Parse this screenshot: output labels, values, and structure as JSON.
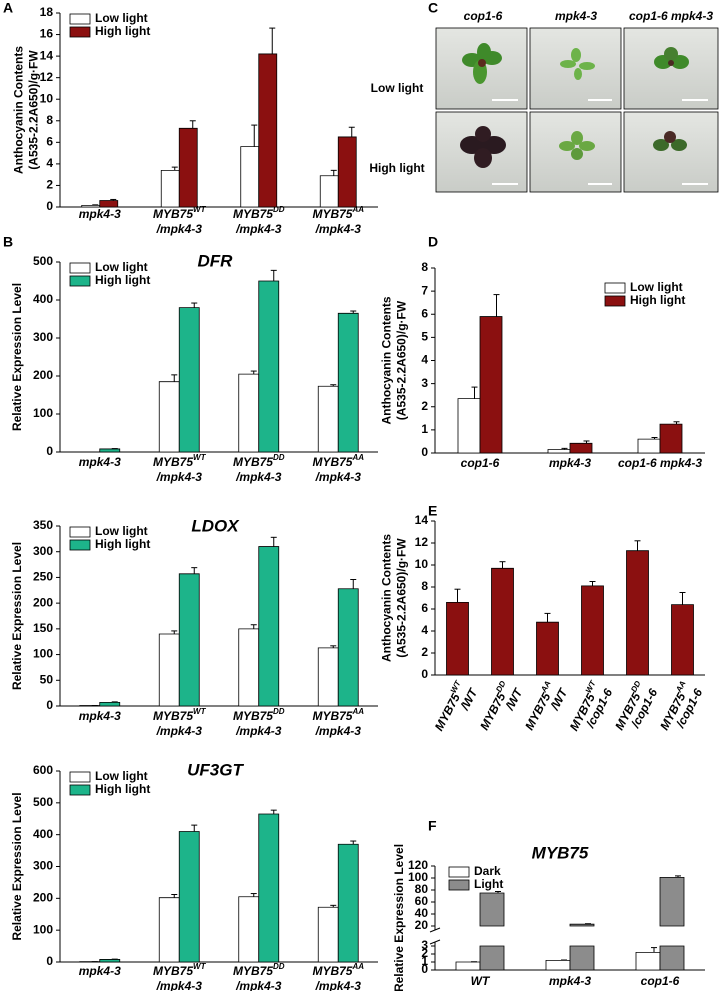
{
  "chart_data": [
    {
      "type": "bar",
      "panel": "A",
      "ylabel": [
        "Anthocyanin Contents",
        "(A535-2.2A650)/g·FW"
      ],
      "categories": [
        "mpk4-3",
        "MYB75WT/mpk4-3",
        "MYB75DD/mpk4-3",
        "MYB75AA/mpk4-3"
      ],
      "series": [
        {
          "name": "Low light",
          "color": "#ffffff",
          "values": [
            0.15,
            3.4,
            5.6,
            2.9
          ],
          "errors": [
            0.05,
            0.3,
            2.0,
            0.5
          ]
        },
        {
          "name": "High light",
          "color": "#8b1010",
          "values": [
            0.6,
            7.3,
            14.2,
            6.5
          ],
          "errors": [
            0.1,
            0.7,
            2.4,
            0.9
          ]
        }
      ],
      "ylim": [
        0,
        18
      ],
      "yticks": [
        0,
        2,
        4,
        6,
        8,
        10,
        12,
        14,
        16,
        18
      ],
      "legend": "upper left"
    },
    {
      "type": "bar",
      "panel": "B",
      "title": "DFR",
      "ylabel": [
        "Relative Expression Level"
      ],
      "categories": [
        "mpk4-3",
        "MYB75WT/mpk4-3",
        "MYB75DD/mpk4-3",
        "MYB75AA/mpk4-3"
      ],
      "series": [
        {
          "name": "Low light",
          "color": "#ffffff",
          "values": [
            0,
            185,
            205,
            173
          ],
          "errors": [
            0,
            18,
            8,
            4
          ]
        },
        {
          "name": "High light",
          "color": "#1db48a",
          "values": [
            8,
            380,
            450,
            365
          ],
          "errors": [
            1,
            12,
            28,
            6
          ]
        }
      ],
      "ylim": [
        0,
        500
      ],
      "yticks": [
        0,
        100,
        200,
        300,
        400,
        500
      ],
      "legend": "upper left"
    },
    {
      "type": "bar",
      "title": "LDOX",
      "ylabel": [
        "Relative Expression Level"
      ],
      "categories": [
        "mpk4-3",
        "MYB75WT/mpk4-3",
        "MYB75DD/mpk4-3",
        "MYB75AA/mpk4-3"
      ],
      "series": [
        {
          "name": "Low light",
          "color": "#ffffff",
          "values": [
            1,
            140,
            150,
            113
          ],
          "errors": [
            0,
            6,
            8,
            4
          ]
        },
        {
          "name": "High light",
          "color": "#1db48a",
          "values": [
            7,
            257,
            310,
            228
          ],
          "errors": [
            1,
            12,
            18,
            18
          ]
        }
      ],
      "ylim": [
        0,
        350
      ],
      "yticks": [
        0,
        50,
        100,
        150,
        200,
        250,
        300,
        350
      ],
      "legend": "upper left"
    },
    {
      "type": "bar",
      "title": "UF3GT",
      "ylabel": [
        "Relative Expression Level"
      ],
      "categories": [
        "mpk4-3",
        "MYB75WT/mpk4-3",
        "MYB75DD/mpk4-3",
        "MYB75AA/mpk4-3"
      ],
      "series": [
        {
          "name": "Low light",
          "color": "#ffffff",
          "values": [
            1,
            202,
            205,
            172
          ],
          "errors": [
            0,
            10,
            10,
            6
          ]
        },
        {
          "name": "High light",
          "color": "#1db48a",
          "values": [
            8,
            410,
            465,
            370
          ],
          "errors": [
            1,
            20,
            12,
            10
          ]
        }
      ],
      "ylim": [
        0,
        600
      ],
      "yticks": [
        0,
        100,
        200,
        300,
        400,
        500,
        600
      ],
      "legend": "upper left"
    },
    {
      "type": "bar",
      "panel": "D",
      "ylabel": [
        "Anthocyanin Contents",
        "(A535-2.2A650)/g·FW"
      ],
      "categories": [
        "cop1-6",
        "mpk4-3",
        "cop1-6 mpk4-3"
      ],
      "series": [
        {
          "name": "Low light",
          "color": "#ffffff",
          "values": [
            2.35,
            0.15,
            0.6
          ],
          "errors": [
            0.5,
            0.05,
            0.07
          ]
        },
        {
          "name": "High light",
          "color": "#8b1010",
          "values": [
            5.9,
            0.42,
            1.25
          ],
          "errors": [
            0.95,
            0.1,
            0.1
          ]
        }
      ],
      "ylim": [
        0,
        8
      ],
      "yticks": [
        0,
        1,
        2,
        3,
        4,
        5,
        6,
        7,
        8
      ],
      "legend": "upper right"
    },
    {
      "type": "bar",
      "panel": "E",
      "ylabel": [
        "Anthocyanin Contents",
        "(A535-2.2A650)/g·FW"
      ],
      "categories": [
        "MYB75WT/WT",
        "MYB75DD/WT",
        "MYB75AA/WT",
        "MYB75WT/cop1-6",
        "MYB75DD/cop1-6",
        "MYB75AA/cop1-6"
      ],
      "series": [
        {
          "color": "#8b1010",
          "values": [
            6.6,
            9.7,
            4.8,
            8.1,
            11.3,
            6.4
          ],
          "errors": [
            1.2,
            0.6,
            0.8,
            0.4,
            0.9,
            1.1
          ]
        }
      ],
      "ylim": [
        0,
        14
      ],
      "yticks": [
        0,
        2,
        4,
        6,
        8,
        10,
        12,
        14
      ]
    },
    {
      "type": "bar",
      "panel": "F",
      "title": "MYB75",
      "ylabel": [
        "Relative Expression Level"
      ],
      "categories": [
        "WT",
        "mpk4-3",
        "cop1-6"
      ],
      "series": [
        {
          "name": "Dark",
          "color": "#ffffff",
          "values": [
            1.0,
            1.2,
            2.2
          ],
          "errors": [
            0.03,
            0.05,
            0.6
          ]
        },
        {
          "name": "Light",
          "color": "#8c8c8c",
          "values": [
            75,
            23,
            101
          ],
          "errors": [
            2.5,
            0.8,
            2.5
          ]
        }
      ],
      "ylim": [
        0,
        120
      ],
      "axis_break": [
        3,
        20
      ],
      "yticks": [
        0,
        1,
        2,
        3,
        20,
        40,
        60,
        80,
        100,
        120
      ],
      "legend": "upper left"
    }
  ],
  "photo_panel": {
    "panel": "C",
    "columns": [
      "cop1-6",
      "mpk4-3",
      "cop1-6 mpk4-3"
    ],
    "rows": [
      "Low light",
      "High light"
    ]
  }
}
